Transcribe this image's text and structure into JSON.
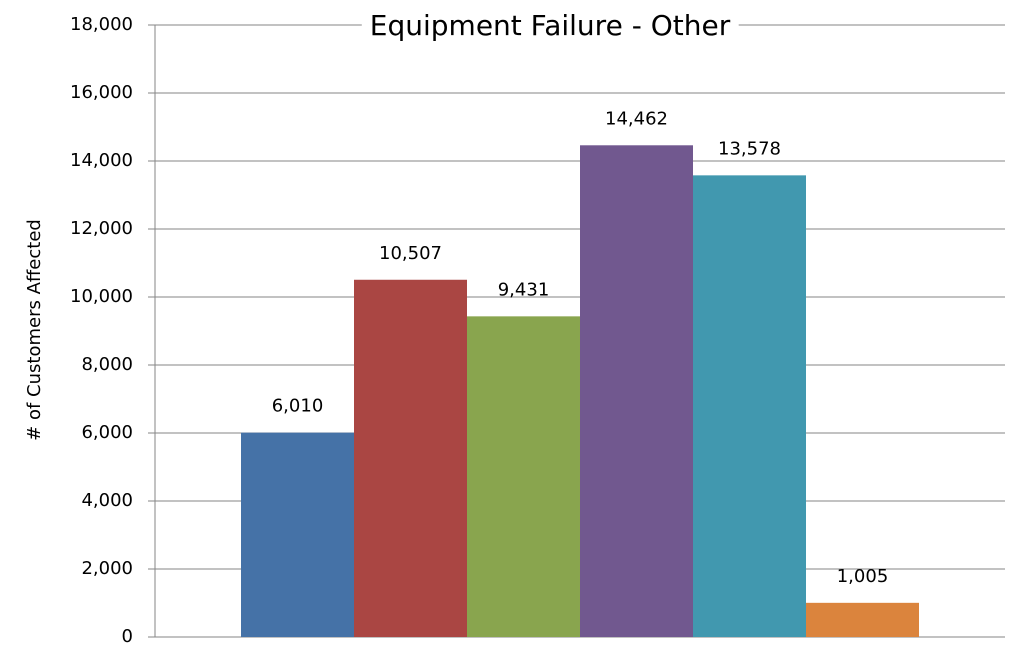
{
  "chart_data": {
    "type": "bar",
    "title": "Equipment Failure - Other",
    "y_label": "# of Customers Affected",
    "categories": [
      null,
      null,
      null,
      null,
      null,
      null
    ],
    "values": [
      6010,
      10507,
      9431,
      14462,
      13578,
      1005
    ],
    "value_labels": [
      "6,010",
      "10,507",
      "9,431",
      "14,462",
      "13,578",
      "1,005"
    ],
    "colors": [
      "#4572a7",
      "#aa4643",
      "#89a54e",
      "#71588f",
      "#4198af",
      "#db843d"
    ],
    "ylim": [
      0,
      18000
    ],
    "yticks": [
      0,
      {
        "value": 2000,
        "label": "2,000"
      },
      {
        "value": 4000,
        "label": "4,000"
      },
      {
        "value": 6000,
        "label": "6,000"
      },
      {
        "value": 8000,
        "label": "8,000"
      },
      {
        "value": 10000,
        "label": "10,000"
      },
      {
        "value": 12000,
        "label": "12,000"
      },
      {
        "value": 14000,
        "label": "14,000"
      },
      {
        "value": 16000,
        "label": "16,000"
      },
      {
        "value": 18000,
        "label": "18,000"
      }
    ],
    "grid": true
  }
}
